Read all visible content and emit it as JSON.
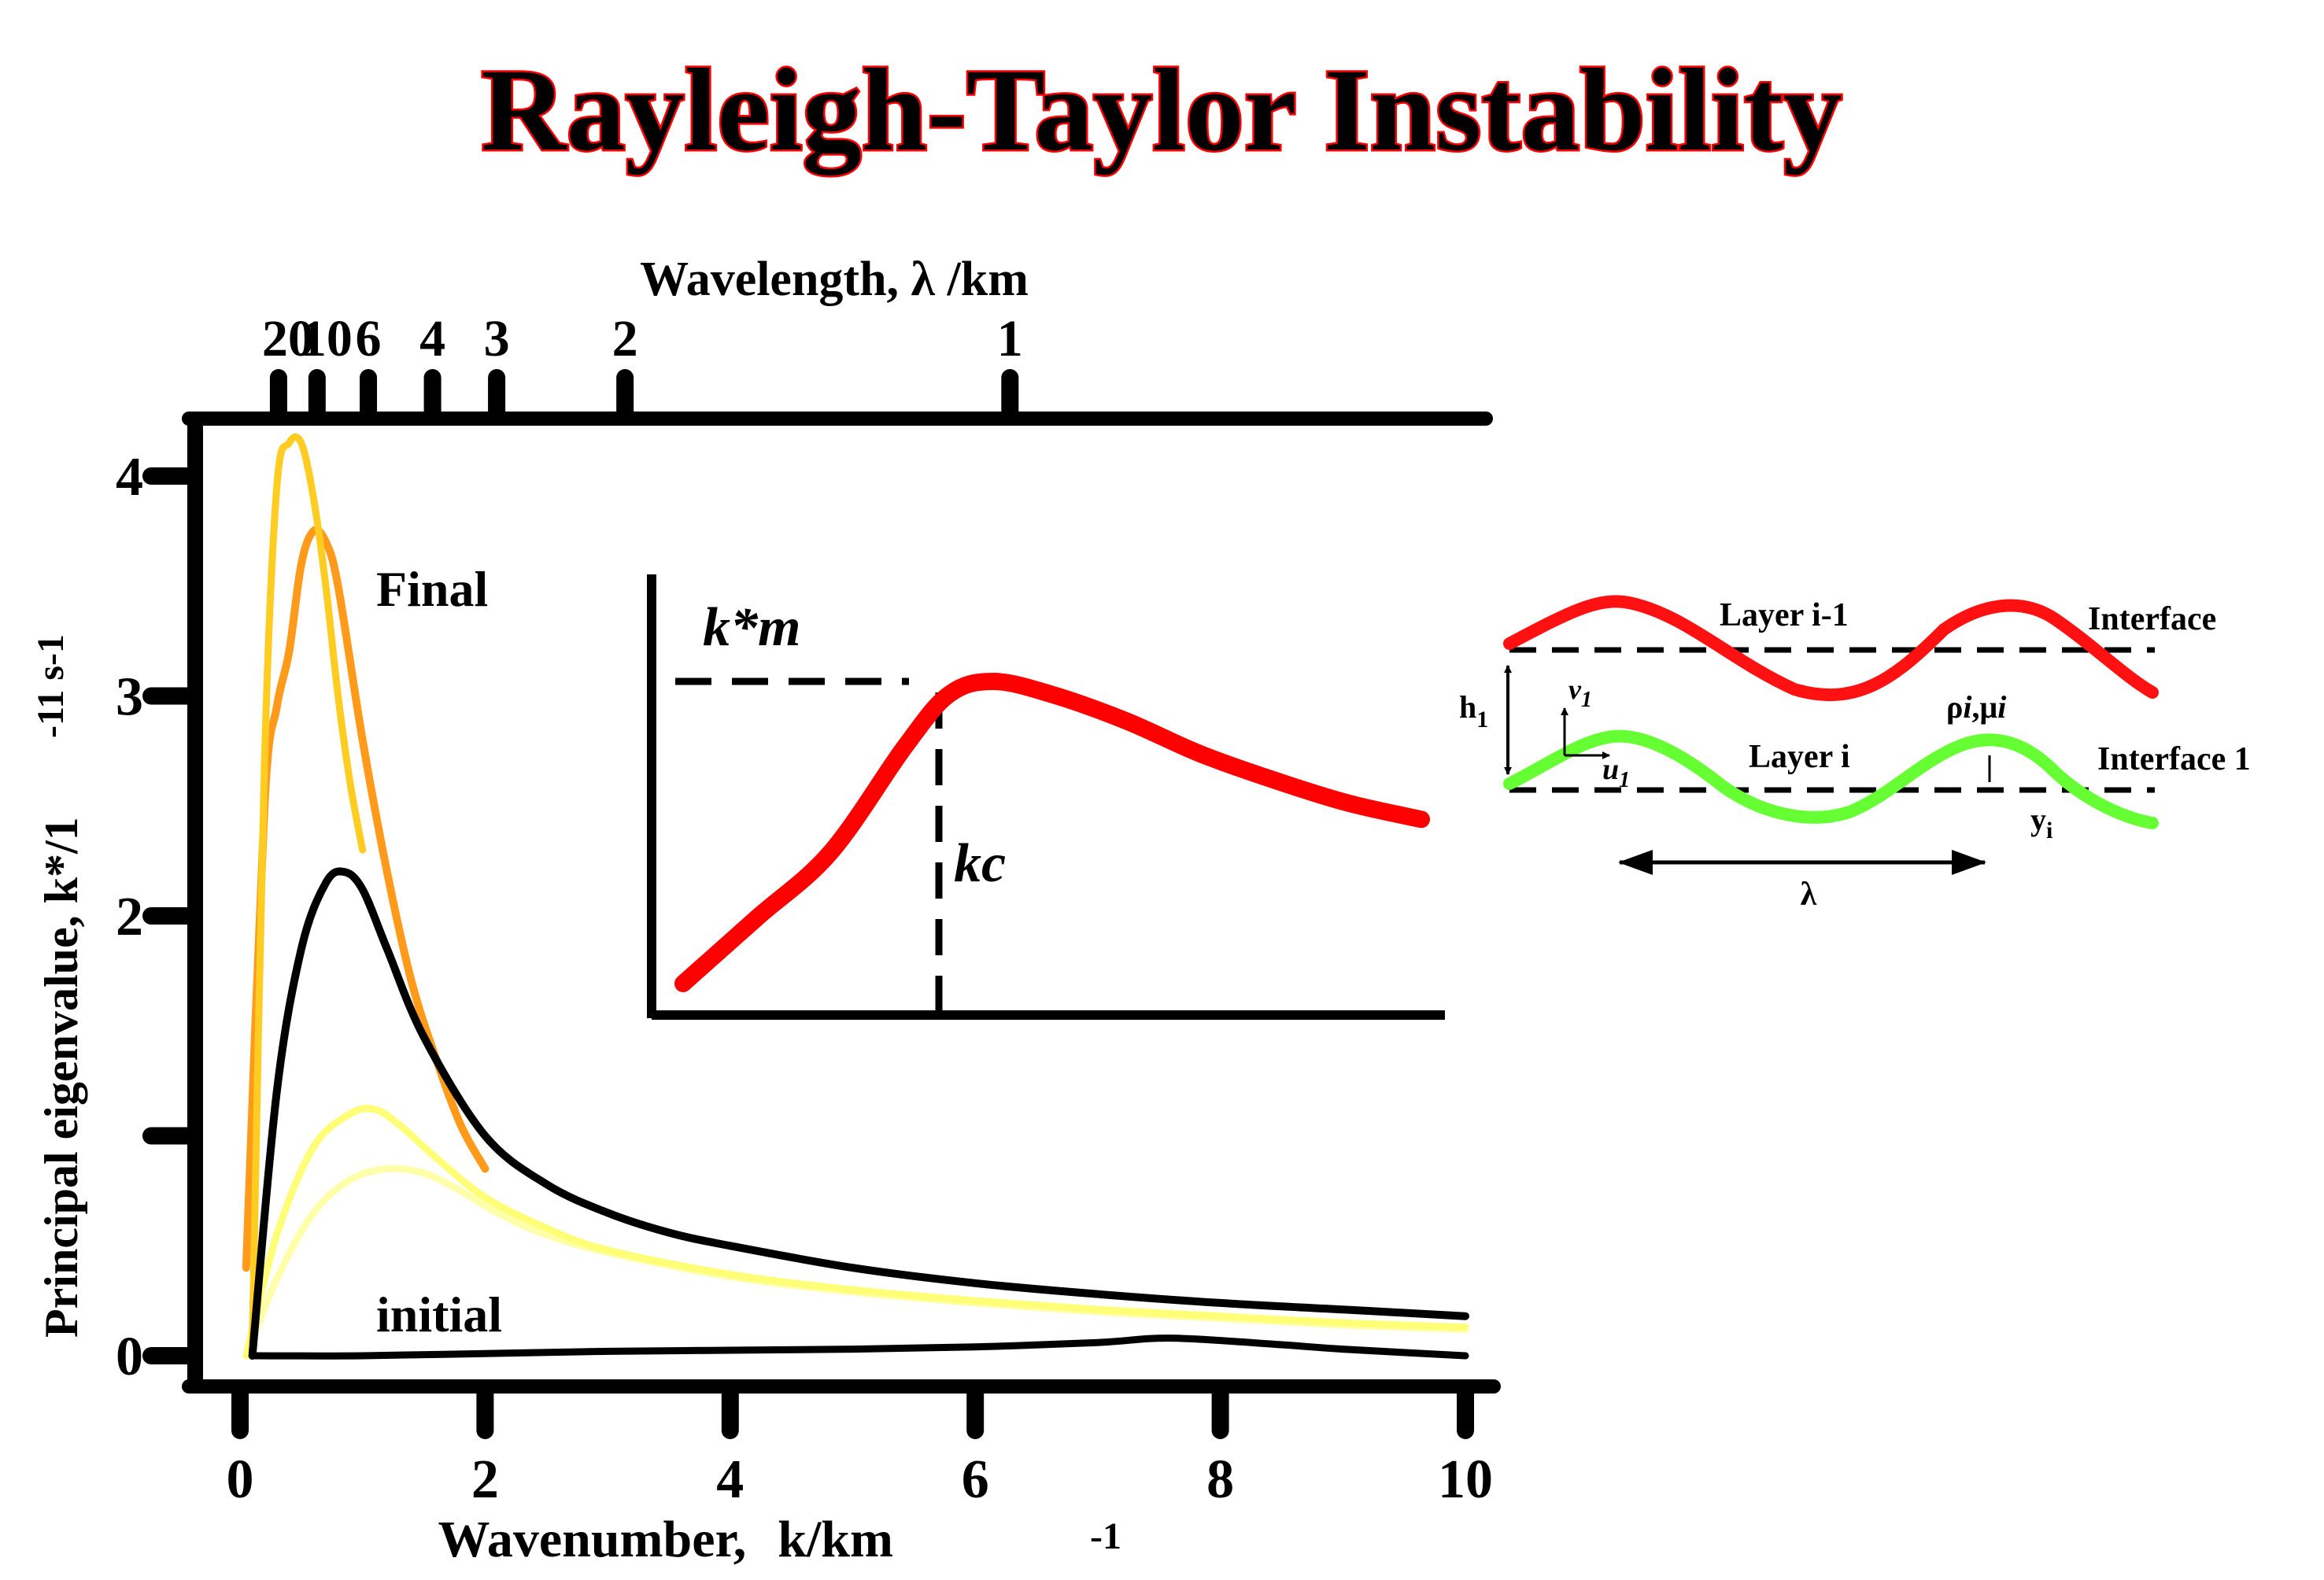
{
  "title": "Rayleigh-Taylor Instability",
  "chart_data": [
    {
      "type": "line",
      "xlabel": "Wavenumber,",
      "xlabel_unit": "k/km",
      "xlabel_unit_exp": "-1",
      "ylabel": "Principal eigenvalue, k*/1",
      "ylabel_exp": "-11 s-1",
      "top_axis_label": "Wavelength, λ /km",
      "xlim": [
        0,
        10
      ],
      "ylim": [
        0,
        4.4
      ],
      "x_ticks": [
        0,
        2,
        4,
        6,
        8,
        10
      ],
      "x_tick_labels": [
        "0",
        "2",
        "4",
        "6",
        "8",
        "10"
      ],
      "y_ticks": [
        0,
        1,
        2,
        3,
        4
      ],
      "y_tick_labels": [
        "0",
        "",
        "2",
        "3",
        "4"
      ],
      "top_ticks": [
        20,
        10,
        6,
        4,
        3,
        2,
        1
      ],
      "top_tick_labels": [
        "20",
        "10",
        "6",
        "4",
        "3",
        "2",
        "1"
      ],
      "annotations": {
        "final": "Final",
        "initial": "initial"
      },
      "series": [
        {
          "color": "#ffcc22",
          "x": [
            0.1,
            0.2,
            0.3,
            0.4,
            0.5,
            0.6,
            0.7,
            0.8,
            0.9,
            1.0
          ],
          "y": [
            0.05,
            2.7,
            3.95,
            4.15,
            4.15,
            3.9,
            3.5,
            3.0,
            2.6,
            2.3
          ]
        },
        {
          "color": "#ff9a1a",
          "x": [
            0.05,
            0.2,
            0.3,
            0.4,
            0.5,
            0.6,
            0.7,
            0.8,
            1.0,
            1.2,
            1.4,
            1.6,
            1.8,
            2.0
          ],
          "y": [
            0.4,
            2.5,
            2.95,
            3.2,
            3.6,
            3.75,
            3.7,
            3.5,
            2.8,
            2.2,
            1.7,
            1.35,
            1.05,
            0.85
          ]
        },
        {
          "color": "#000000",
          "x": [
            0.1,
            0.3,
            0.5,
            0.7,
            0.85,
            1.0,
            1.2,
            1.5,
            2.0,
            2.5,
            3.0,
            3.5,
            4.0,
            5.0,
            6.0,
            7.0,
            8.0,
            9.0,
            10.0
          ],
          "y": [
            0.0,
            1.2,
            1.85,
            2.15,
            2.2,
            2.12,
            1.85,
            1.45,
            1.0,
            0.78,
            0.65,
            0.56,
            0.5,
            0.4,
            0.33,
            0.28,
            0.24,
            0.21,
            0.18
          ]
        },
        {
          "color": "#ffff77",
          "x": [
            0.05,
            0.3,
            0.6,
            0.9,
            1.1,
            1.3,
            1.6,
            2.0,
            2.5,
            3.0,
            4.0,
            5.0,
            6.0,
            7.0,
            8.0,
            9.0,
            10.0
          ],
          "y": [
            0.0,
            0.55,
            0.95,
            1.1,
            1.12,
            1.05,
            0.9,
            0.72,
            0.58,
            0.48,
            0.37,
            0.3,
            0.25,
            0.21,
            0.18,
            0.15,
            0.13
          ]
        },
        {
          "color": "#ffffaa",
          "x": [
            0.05,
            0.3,
            0.6,
            0.9,
            1.2,
            1.5,
            1.8,
            2.1,
            2.5,
            3.0,
            4.0,
            5.0,
            6.0,
            7.0,
            8.0,
            9.0,
            10.0
          ],
          "y": [
            0.0,
            0.35,
            0.65,
            0.8,
            0.85,
            0.83,
            0.75,
            0.65,
            0.55,
            0.47,
            0.36,
            0.29,
            0.24,
            0.2,
            0.17,
            0.14,
            0.12
          ]
        },
        {
          "color": "#000000",
          "x": [
            0.1,
            1.0,
            2.0,
            3.0,
            4.0,
            5.0,
            6.0,
            7.0,
            7.6,
            8.5,
            9.0,
            10.0
          ],
          "y": [
            0.0,
            0.0,
            0.01,
            0.02,
            0.025,
            0.03,
            0.04,
            0.06,
            0.08,
            0.05,
            0.03,
            0.0
          ]
        }
      ]
    },
    {
      "type": "line",
      "labels": {
        "peak": "k*m",
        "critical": "kc"
      },
      "description_series": [
        {
          "color": "#ff0000",
          "x": [
            0,
            0.1,
            0.2,
            0.3,
            0.36,
            0.42,
            0.5,
            0.6,
            0.7,
            0.8,
            0.9,
            1.0
          ],
          "y": [
            0.0,
            0.2,
            0.4,
            0.72,
            0.88,
            0.92,
            0.88,
            0.8,
            0.7,
            0.62,
            0.55,
            0.5
          ]
        }
      ]
    }
  ],
  "diagram": {
    "layer_top": "Layer i-1",
    "interface_top": "Interface",
    "layer_mid": "Layer i",
    "interface_bottom": "Interface 1",
    "h_label": "h",
    "h_sub": "1",
    "v_label": "v",
    "v_sub": "1",
    "u_label": "u",
    "u_sub": "1",
    "rho_label": "ρ",
    "rho_sub": "i",
    "mu_label": ",μ",
    "mu_sub": "i",
    "y_label": "y",
    "y_sub": "i",
    "lambda_label": "λ",
    "colors": {
      "top_interface": "#ff1111",
      "bottom_interface": "#66ff33"
    }
  }
}
